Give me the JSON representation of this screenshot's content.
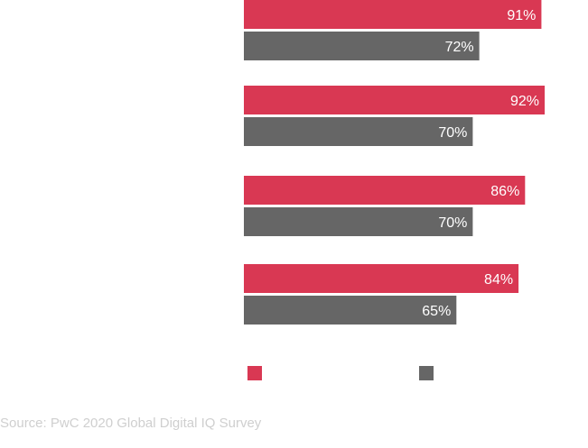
{
  "chart_data": {
    "type": "bar",
    "orientation": "horizontal",
    "categories": [
      "",
      "",
      "",
      ""
    ],
    "series": [
      {
        "name": "",
        "color": "#d93853",
        "values": [
          91,
          92,
          86,
          84
        ]
      },
      {
        "name": "",
        "color": "#666666",
        "values": [
          72,
          70,
          70,
          65
        ]
      }
    ],
    "value_suffix": "%",
    "xlim": [
      0,
      100
    ],
    "grid": false,
    "legend": "bottom"
  },
  "source": "Source: PwC 2020 Global Digital IQ Survey"
}
